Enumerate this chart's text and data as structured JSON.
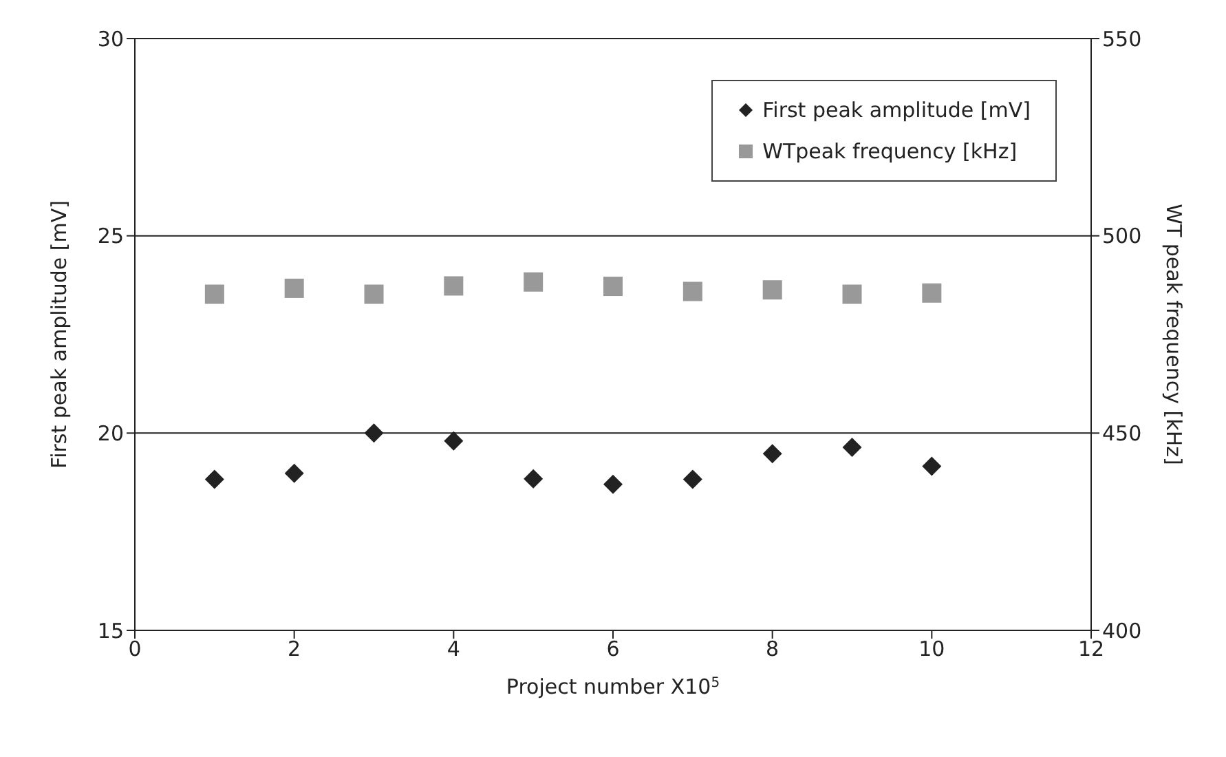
{
  "chart_data": {
    "type": "scatter",
    "xlabel": "Project number X10$^{5}$",
    "ylabel": "First peak amplitude [mV]",
    "y2label": "WT peak frequency [kHz]",
    "x": [
      1,
      2,
      3,
      4,
      5,
      6,
      7,
      8,
      9,
      10
    ],
    "series": [
      {
        "name": "First peak amplitude [mV]",
        "color": "#222222",
        "marker": "diamond",
        "values": [
          18.83,
          18.98,
          20.0,
          19.8,
          18.84,
          18.7,
          18.83,
          19.48,
          19.64,
          19.16
        ]
      },
      {
        "name": "WTpeak frequency [kHz]",
        "color": "#999999",
        "marker": "square",
        "axis": "y2",
        "values": [
          485.2,
          486.7,
          485.2,
          487.3,
          488.3,
          487.2,
          485.9,
          486.3,
          485.2,
          485.5
        ]
      }
    ],
    "xlim": [
      0,
      12
    ],
    "xticks": [
      0,
      2,
      4,
      6,
      8,
      10,
      12
    ],
    "ylim": [
      15,
      30
    ],
    "yticks": [
      15,
      20,
      25,
      30
    ],
    "y2lim": [
      400,
      550
    ],
    "y2ticks": [
      400,
      450,
      500,
      550
    ],
    "grid": "y",
    "legend": "top right"
  }
}
